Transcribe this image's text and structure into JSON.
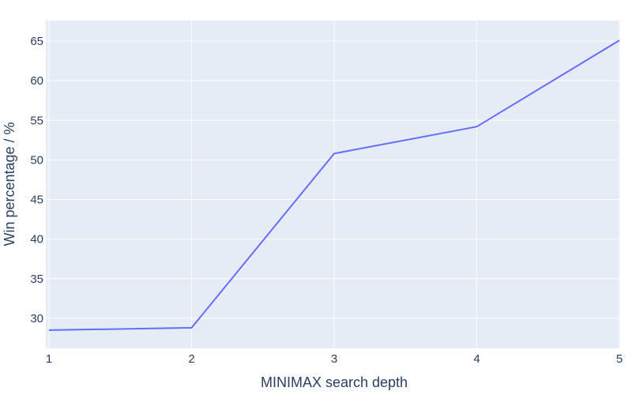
{
  "chart_data": {
    "type": "line",
    "xlabel": "MINIMAX search depth",
    "ylabel": "Win percentage / %",
    "x": [
      1,
      2,
      3,
      4,
      5
    ],
    "series": [
      {
        "values": [
          28.5,
          28.8,
          50.8,
          54.2,
          65.1
        ]
      }
    ],
    "xlim": [
      1,
      5
    ],
    "ylim": [
      26.2,
      67.6
    ],
    "x_ticks": [
      1,
      2,
      3,
      4,
      5
    ],
    "y_ticks": [
      30,
      35,
      40,
      45,
      50,
      55,
      60,
      65
    ],
    "grid": true,
    "colors": {
      "plot_background": "#e5ecf6",
      "grid": "#ffffff",
      "line": "#636efa",
      "text": "#2a3f5f"
    }
  }
}
